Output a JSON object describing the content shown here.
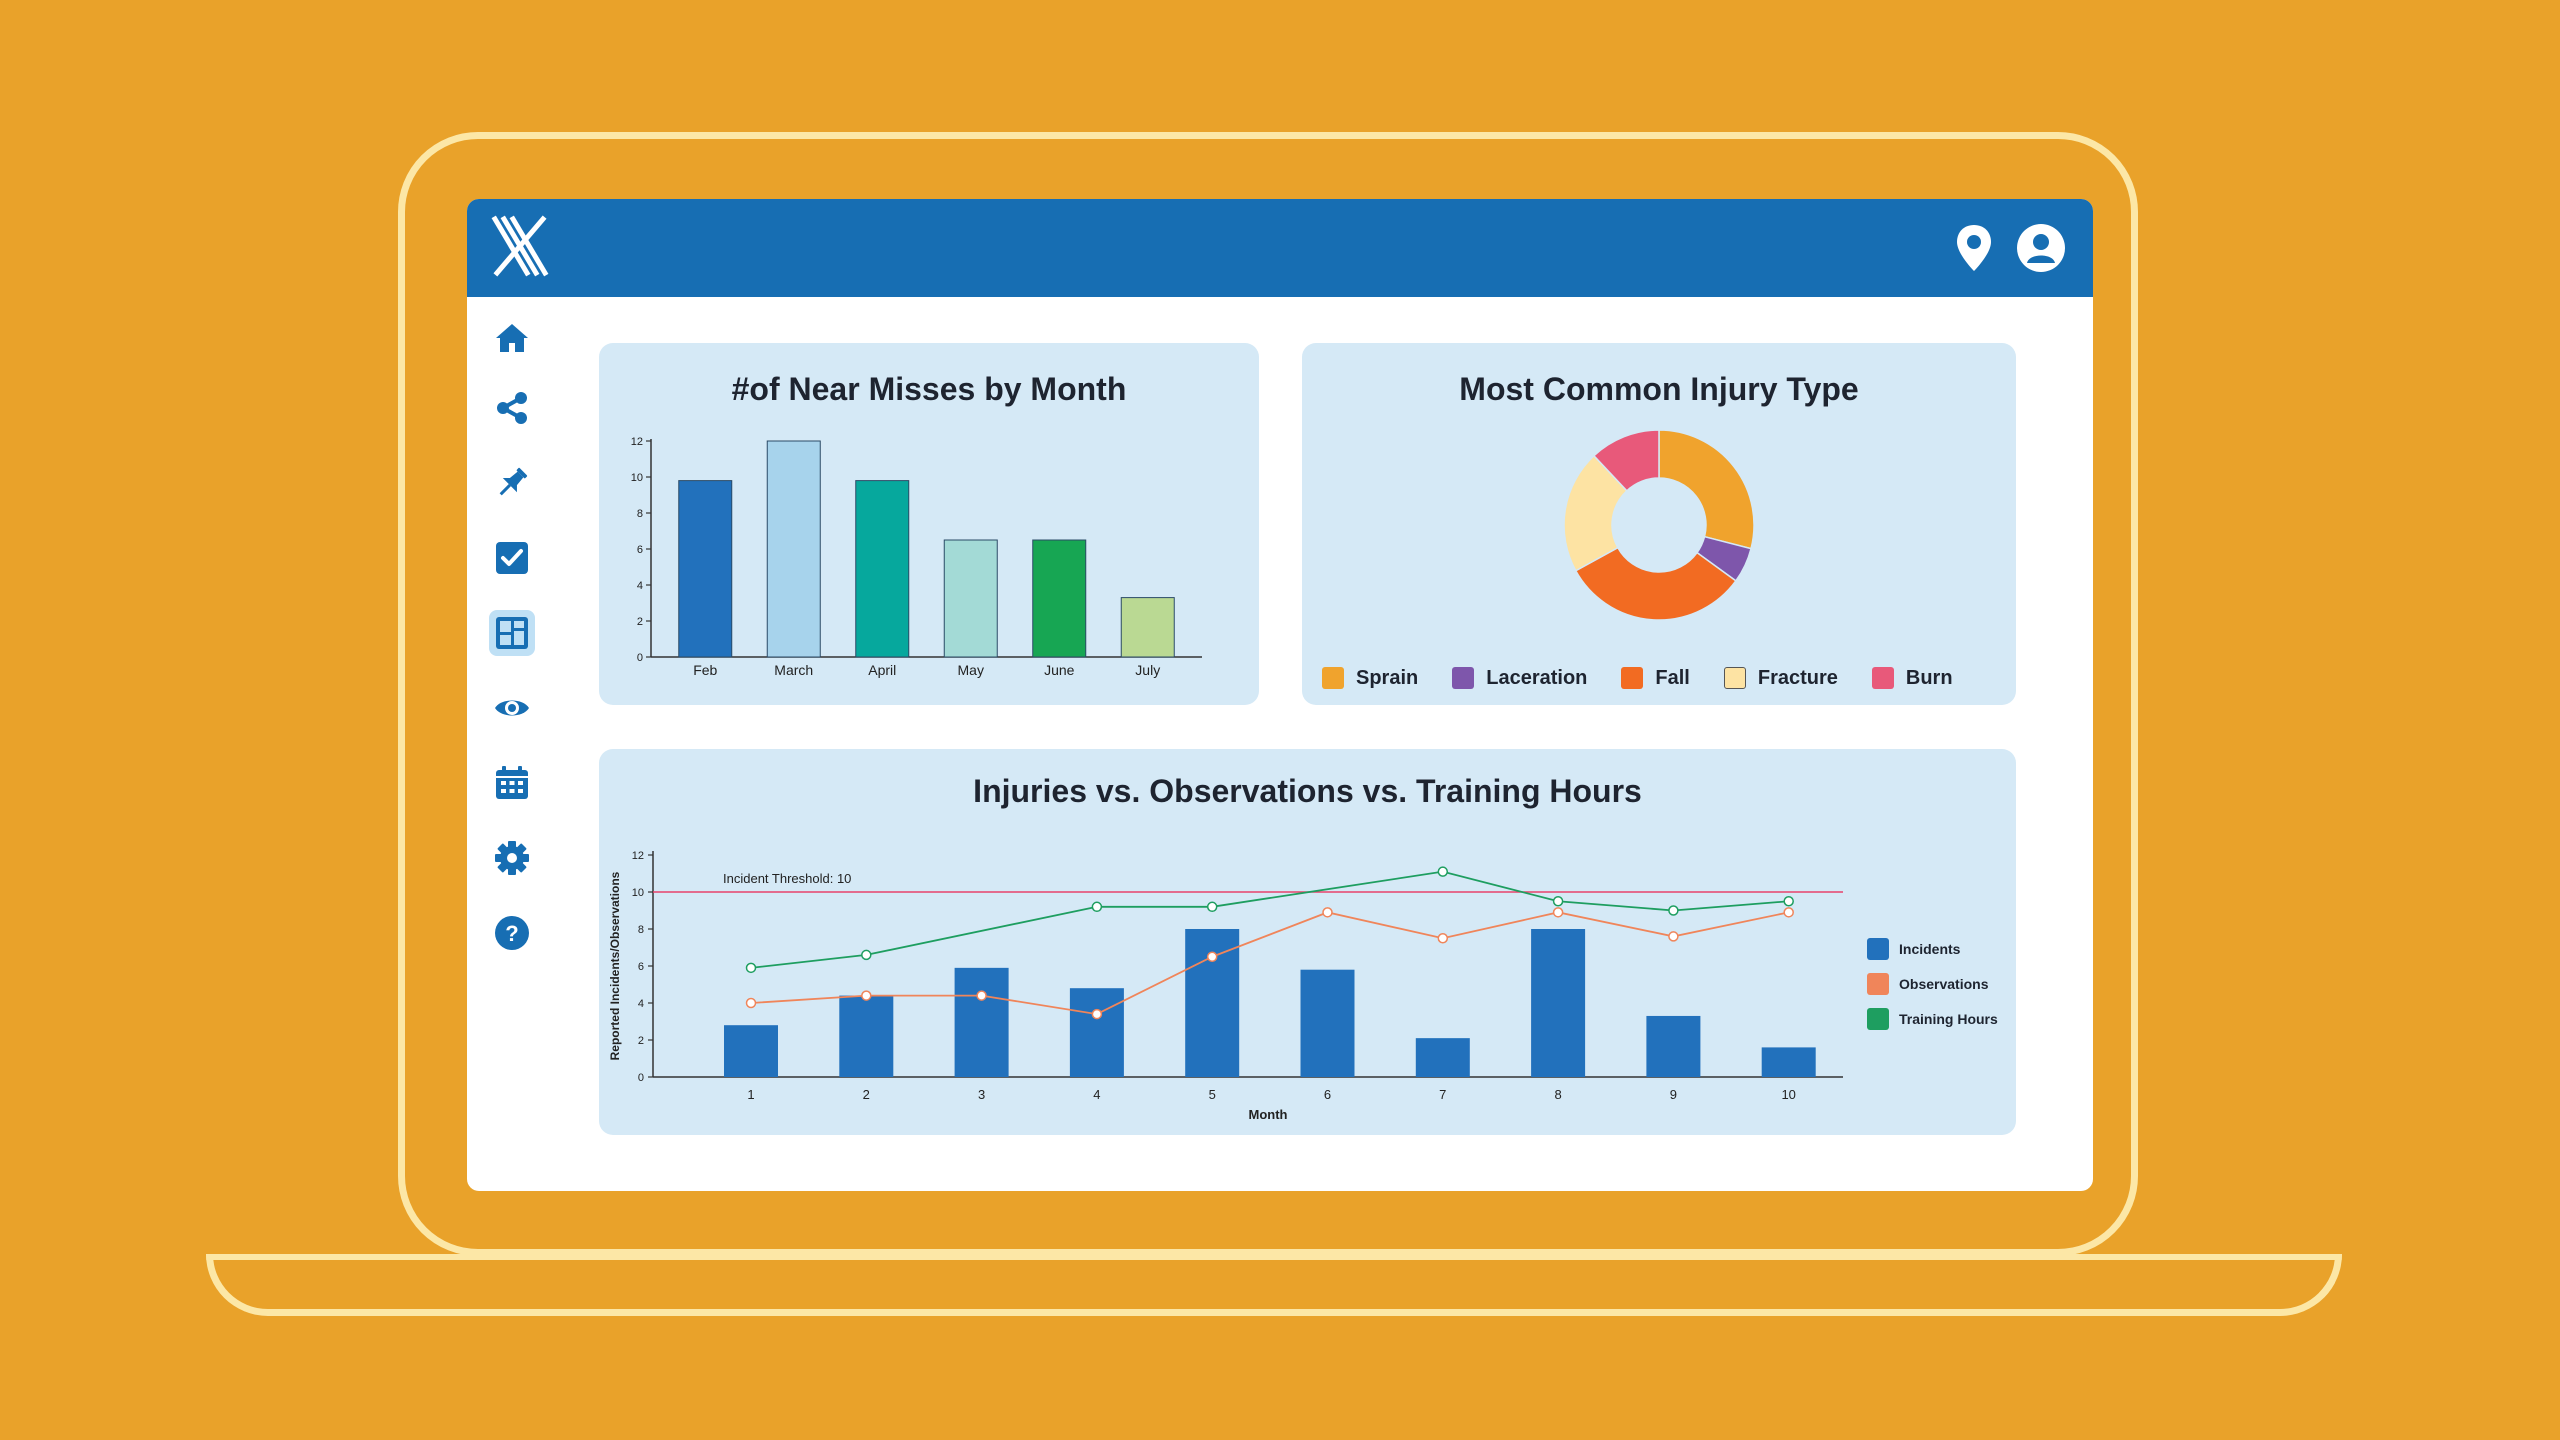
{
  "colors": {
    "background": "#E9A22A",
    "laptop_outline": "#FCE7A6",
    "topbar": "#176EB3",
    "card_bg": "#D5E9F6",
    "icon_blue": "#176EB3"
  },
  "topbar": {
    "logo": "x-logo",
    "icons": [
      "location-pin-icon",
      "user-account-icon"
    ]
  },
  "sidebar": {
    "items": [
      {
        "icon": "home-icon",
        "active": false
      },
      {
        "icon": "share-network-icon",
        "active": false
      },
      {
        "icon": "pushpin-icon",
        "active": false
      },
      {
        "icon": "checkbox-icon",
        "active": false
      },
      {
        "icon": "dashboard-icon",
        "active": true
      },
      {
        "icon": "eye-icon",
        "active": false
      },
      {
        "icon": "calendar-icon",
        "active": false
      },
      {
        "icon": "gear-icon",
        "active": false
      },
      {
        "icon": "help-icon",
        "active": false
      }
    ]
  },
  "chart_data": [
    {
      "type": "bar",
      "title": "#of Near Misses by Month",
      "categories": [
        "Feb",
        "March",
        "April",
        "May",
        "June",
        "July"
      ],
      "values": [
        9.8,
        12,
        9.8,
        6.5,
        6.5,
        3.3
      ],
      "colors": [
        "#2271BC",
        "#A7D3EC",
        "#06A89D",
        "#A3DAD6",
        "#17A653",
        "#BAD993"
      ],
      "yticks": [
        "0",
        "2",
        "4",
        "6",
        "8",
        "10",
        "12"
      ],
      "ylim": [
        0,
        12
      ]
    },
    {
      "type": "pie",
      "title": "Most Common Injury Type",
      "labels": [
        "Sprain",
        "Laceration",
        "Fall",
        "Fracture",
        "Burn"
      ],
      "values": [
        29,
        6,
        32,
        21,
        12
      ],
      "colors": [
        "#F0A32D",
        "#7E56AB",
        "#F26B22",
        "#FDE3A3",
        "#E8597A"
      ]
    },
    {
      "type": "bar",
      "title": "Injuries vs. Observations vs. Training Hours",
      "xlabel": "Month",
      "ylabel": "Reported Incidents/Observations",
      "categories": [
        "1",
        "2",
        "3",
        "4",
        "5",
        "6",
        "7",
        "8",
        "9",
        "10"
      ],
      "yticks": [
        "0",
        "2",
        "4",
        "6",
        "8",
        "10",
        "12"
      ],
      "ylim": [
        0,
        12
      ],
      "threshold": {
        "label": "Incident  Threshold: 10",
        "value": 10,
        "color": "#E8436B"
      },
      "series": [
        {
          "name": "Incidents",
          "kind": "bar",
          "color": "#2271BC",
          "values": [
            2.8,
            4.4,
            5.9,
            4.8,
            8.0,
            5.8,
            2.1,
            8.0,
            3.3,
            1.6
          ]
        },
        {
          "name": "Observations",
          "kind": "line",
          "color": "#F0855A",
          "values": [
            4.0,
            4.4,
            4.4,
            3.4,
            6.5,
            8.9,
            7.5,
            8.9,
            7.6,
            8.9
          ]
        },
        {
          "name": "Training Hours",
          "kind": "line",
          "color": "#1E9E60",
          "values": [
            5.9,
            6.6,
            null,
            9.2,
            9.2,
            null,
            11.1,
            9.5,
            9.0,
            9.5
          ]
        }
      ]
    }
  ]
}
